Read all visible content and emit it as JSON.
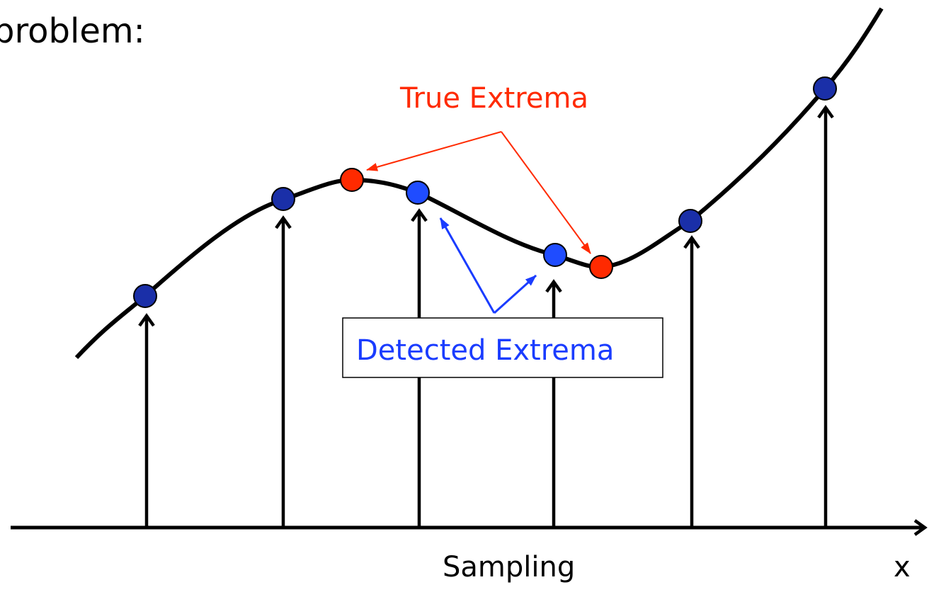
{
  "title": "problem:",
  "labels": {
    "true_extrema": "True Extrema",
    "detected_extrema": "Detected Extrema",
    "axis_label": "Sampling",
    "axis_symbol": "x"
  }
}
